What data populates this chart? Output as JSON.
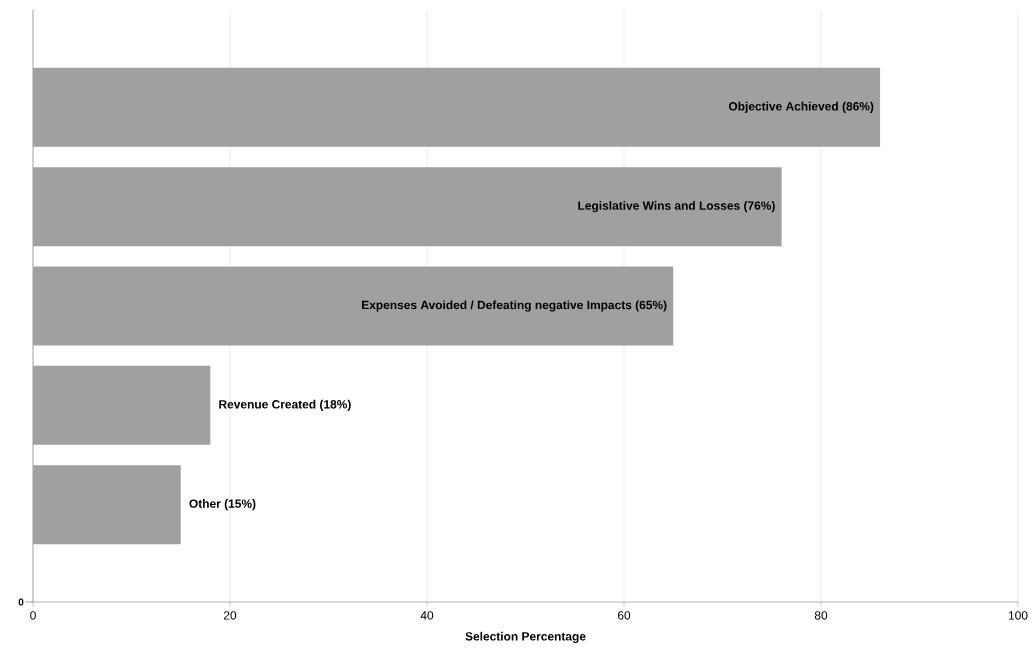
{
  "chart_data": {
    "type": "bar",
    "orientation": "horizontal",
    "xlabel": "Selection Percentage",
    "categories": [
      "Objective Achieved (86%)",
      "Legislative Wins and Losses (76%)",
      "Expenses Avoided / Defeating negative Impacts (65%)",
      "Revenue Created (18%)",
      "Other (15%)"
    ],
    "values": [
      86,
      76,
      65,
      18,
      15
    ],
    "color": "#a0a0a0",
    "xlim": [
      0,
      100
    ],
    "xticks": [
      0,
      20,
      40,
      60,
      80,
      100
    ],
    "grid": "x",
    "annotations": [
      "0"
    ]
  }
}
